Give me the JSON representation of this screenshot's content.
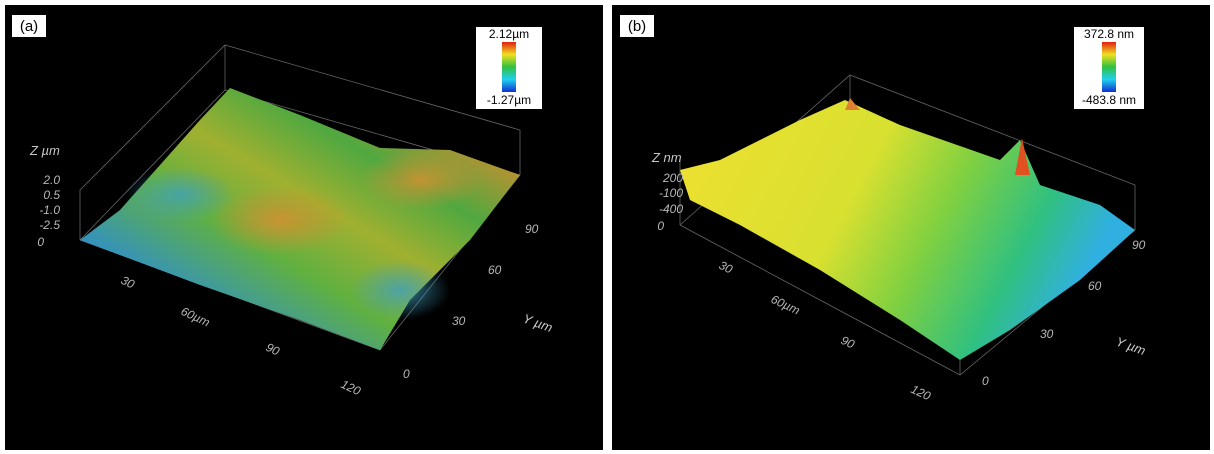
{
  "panels": [
    {
      "label": "(a)",
      "colorbar_max": "2.12µm",
      "colorbar_min": "-1.27µm",
      "z_title": "Z µm",
      "z_ticks": [
        "2.0",
        "0.5",
        "-1.0",
        "-2.5"
      ],
      "x_ticks": [
        "0",
        "30",
        "60µm",
        "90",
        "120"
      ],
      "y_ticks": [
        "0",
        "30",
        "60",
        "90"
      ],
      "y_title": "Y µm"
    },
    {
      "label": "(b)",
      "colorbar_max": "372.8 nm",
      "colorbar_min": "-483.8 nm",
      "z_title": "Z nm",
      "z_ticks": [
        "200",
        "-100",
        "-400"
      ],
      "x_ticks": [
        "0",
        "30",
        "60µm",
        "90",
        "120"
      ],
      "y_ticks": [
        "0",
        "30",
        "60",
        "90"
      ],
      "y_title": "Y µm"
    }
  ]
}
